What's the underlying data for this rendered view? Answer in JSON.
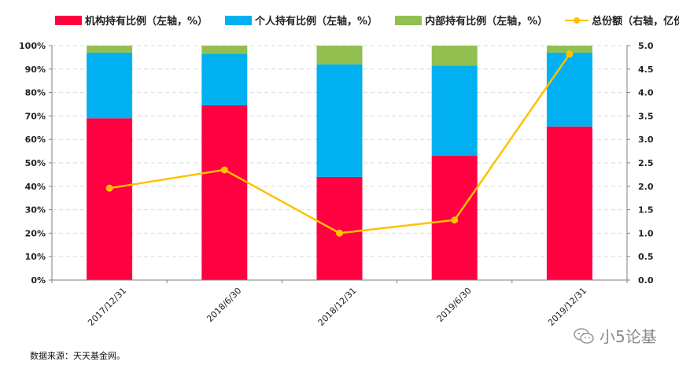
{
  "legend": {
    "institution": "机构持有比例（左轴，%）",
    "individual": "个人持有比例（左轴，%）",
    "insider": "内部持有比例（左轴，%）",
    "total": "总份额（右轴，亿份）"
  },
  "colors": {
    "institution": "#FF0040",
    "individual": "#00B0F0",
    "insider": "#92C050",
    "total": "#FFC000",
    "grid": "#d9d9d9",
    "axis": "#7f7f7f"
  },
  "chart_data": {
    "type": "bar",
    "stacked": true,
    "categories": [
      "2017/12/31",
      "2018/6/30",
      "2018/12/31",
      "2019/6/30",
      "2019/12/31"
    ],
    "series": [
      {
        "name": "机构持有比例（左轴，%）",
        "values": [
          69,
          74.5,
          44,
          53,
          65.5
        ]
      },
      {
        "name": "个人持有比例（左轴，%）",
        "values": [
          28,
          22,
          48,
          38.5,
          31.5
        ]
      },
      {
        "name": "内部持有比例（左轴，%）",
        "values": [
          3,
          3.5,
          8,
          8.5,
          3
        ]
      }
    ],
    "line_series": {
      "name": "总份额（右轴，亿份）",
      "values": [
        1.96,
        2.35,
        1.0,
        1.28,
        4.82
      ]
    },
    "yleft": {
      "min": 0,
      "max": 100,
      "ticks": [
        "0%",
        "10%",
        "20%",
        "30%",
        "40%",
        "50%",
        "60%",
        "70%",
        "80%",
        "90%",
        "100%"
      ]
    },
    "yright": {
      "min": 0,
      "max": 5,
      "ticks": [
        "0.0",
        "0.5",
        "1.0",
        "1.5",
        "2.0",
        "2.5",
        "3.0",
        "3.5",
        "4.0",
        "4.5",
        "5.0"
      ]
    }
  },
  "footer": {
    "source": "数据来源：天天基金网。"
  },
  "watermark": {
    "text": "小5论基",
    "icon": "wechat-icon"
  }
}
